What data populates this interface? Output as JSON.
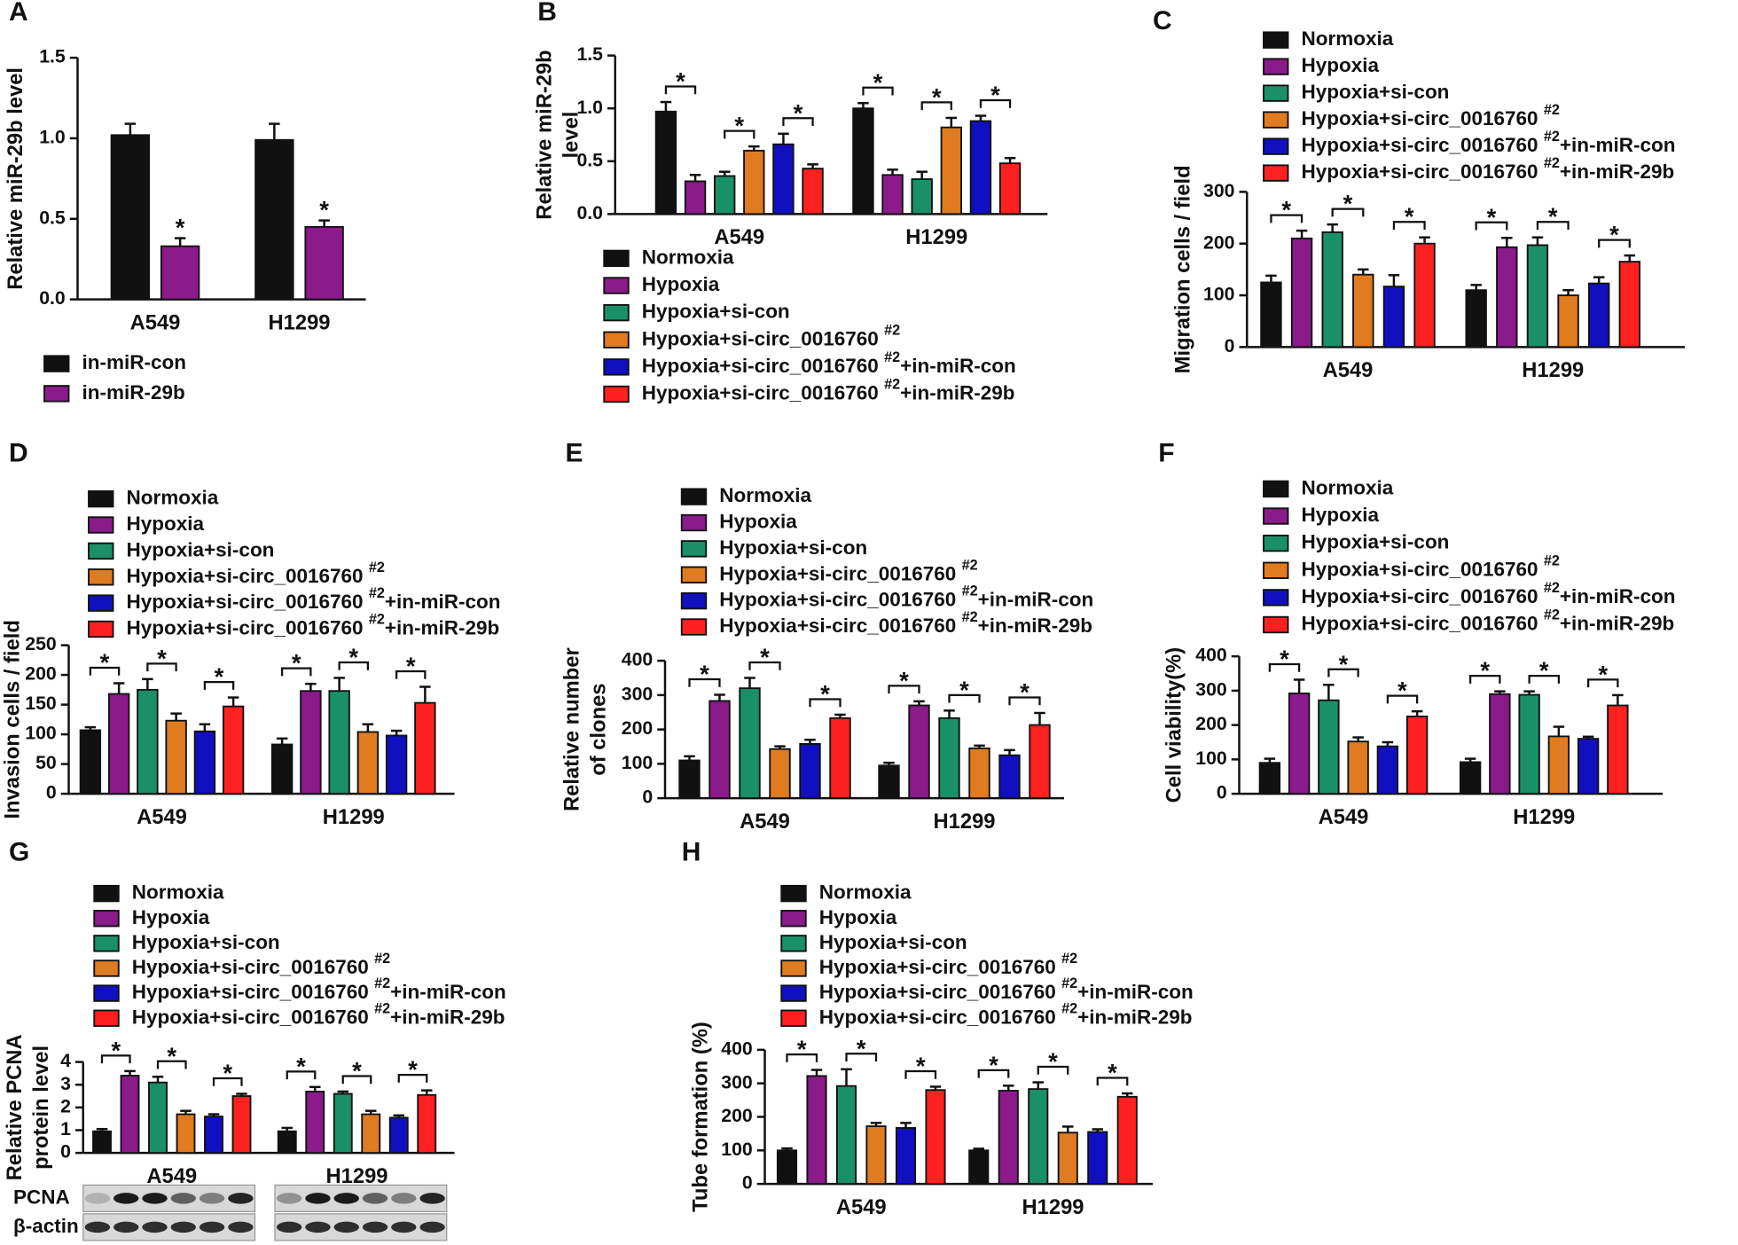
{
  "chart_data": [
    {
      "type": "bar",
      "label": "A",
      "ylabel": [
        "Relative miR-29b level"
      ],
      "categories": [
        "A549",
        "H1299"
      ],
      "series": [
        {
          "name": "in-miR-con",
          "color": "#111111",
          "values": [
            1.02,
            0.99
          ],
          "errors": [
            0.07,
            0.1
          ]
        },
        {
          "name": "in-miR-29b",
          "color": "#8b1a8b",
          "values": [
            0.33,
            0.45
          ],
          "errors": [
            0.05,
            0.04
          ]
        }
      ],
      "ylim": [
        0,
        1.5
      ],
      "yticks": [
        {
          "value": 0,
          "label": "0.0"
        },
        0.5,
        {
          "value": 1,
          "label": "1.0"
        },
        1.5
      ],
      "annotations": [
        {
          "text": "*",
          "category": 0,
          "series": 1
        },
        {
          "text": "*",
          "category": 1,
          "series": 1
        }
      ]
    },
    {
      "type": "bar",
      "label": "B",
      "ylabel": [
        "Relative miR-29b",
        "level"
      ],
      "categories": [
        "A549",
        "H1299"
      ],
      "series": [
        {
          "name": "Normoxia",
          "color": "#111111",
          "values": [
            0.97,
            1.0
          ],
          "errors": [
            0.09,
            0.05
          ]
        },
        {
          "name": "Hypoxia",
          "color": "#8b1a8b",
          "values": [
            0.31,
            0.37
          ],
          "errors": [
            0.06,
            0.05
          ]
        },
        {
          "name": "Hypoxia+si-con",
          "color": "#1a9068",
          "values": [
            0.36,
            0.33
          ],
          "errors": [
            0.04,
            0.07
          ]
        },
        {
          "name": "Hypoxia+si-circ_0016760 #2",
          "color": "#e07b20",
          "values": [
            0.6,
            0.82
          ],
          "errors": [
            0.04,
            0.09
          ]
        },
        {
          "name": "Hypoxia+si-circ_0016760 #2+in-miR-con",
          "color": "#1010c0",
          "values": [
            0.66,
            0.88
          ],
          "errors": [
            0.1,
            0.05
          ]
        },
        {
          "name": "Hypoxia+si-circ_0016760 #2+in-miR-29b",
          "color": "#ff2020",
          "values": [
            0.43,
            0.48
          ],
          "errors": [
            0.04,
            0.05
          ]
        }
      ],
      "ylim": [
        0,
        1.5
      ],
      "yticks": [
        {
          "value": 0,
          "label": "0.0"
        },
        0.5,
        {
          "value": 1,
          "label": "1.0"
        },
        1.5
      ],
      "annotations": [
        {
          "text": "*",
          "category": 0,
          "pair": [
            0,
            1
          ]
        },
        {
          "text": "*",
          "category": 0,
          "pair": [
            2,
            3
          ]
        },
        {
          "text": "*",
          "category": 0,
          "pair": [
            4,
            5
          ]
        },
        {
          "text": "*",
          "category": 1,
          "pair": [
            0,
            1
          ]
        },
        {
          "text": "*",
          "category": 1,
          "pair": [
            2,
            3
          ]
        },
        {
          "text": "*",
          "category": 1,
          "pair": [
            4,
            5
          ]
        }
      ]
    },
    {
      "type": "bar",
      "label": "C",
      "ylabel": [
        "Migration cells / field"
      ],
      "categories": [
        "A549",
        "H1299"
      ],
      "series": [
        {
          "name": "Normoxia",
          "color": "#111111",
          "values": [
            125,
            110
          ],
          "errors": [
            13,
            10
          ]
        },
        {
          "name": "Hypoxia",
          "color": "#8b1a8b",
          "values": [
            210,
            193
          ],
          "errors": [
            15,
            18
          ]
        },
        {
          "name": "Hypoxia+si-con",
          "color": "#1a9068",
          "values": [
            222,
            197
          ],
          "errors": [
            15,
            15
          ]
        },
        {
          "name": "Hypoxia+si-circ_0016760 #2",
          "color": "#e07b20",
          "values": [
            140,
            100
          ],
          "errors": [
            10,
            10
          ]
        },
        {
          "name": "Hypoxia+si-circ_0016760 #2+in-miR-con",
          "color": "#1010c0",
          "values": [
            117,
            123
          ],
          "errors": [
            22,
            12
          ]
        },
        {
          "name": "Hypoxia+si-circ_0016760 #2+in-miR-29b",
          "color": "#ff2020",
          "values": [
            200,
            165
          ],
          "errors": [
            12,
            12
          ]
        }
      ],
      "ylim": [
        0,
        300
      ],
      "yticks": [
        0,
        100,
        200,
        300
      ],
      "annotations": [
        {
          "text": "*",
          "category": 0,
          "pair": [
            0,
            1
          ]
        },
        {
          "text": "*",
          "category": 0,
          "pair": [
            2,
            3
          ]
        },
        {
          "text": "*",
          "category": 0,
          "pair": [
            4,
            5
          ]
        },
        {
          "text": "*",
          "category": 1,
          "pair": [
            0,
            1
          ]
        },
        {
          "text": "*",
          "category": 1,
          "pair": [
            2,
            3
          ]
        },
        {
          "text": "*",
          "category": 1,
          "pair": [
            4,
            5
          ]
        }
      ]
    },
    {
      "type": "bar",
      "label": "D",
      "ylabel": [
        "Invasion cells / field"
      ],
      "categories": [
        "A549",
        "H1299"
      ],
      "series": [
        {
          "name": "Normoxia",
          "color": "#111111",
          "values": [
            107,
            83
          ],
          "errors": [
            5,
            10
          ]
        },
        {
          "name": "Hypoxia",
          "color": "#8b1a8b",
          "values": [
            168,
            173
          ],
          "errors": [
            18,
            12
          ]
        },
        {
          "name": "Hypoxia+si-con",
          "color": "#1a9068",
          "values": [
            175,
            173
          ],
          "errors": [
            18,
            22
          ]
        },
        {
          "name": "Hypoxia+si-circ_0016760 #2",
          "color": "#e07b20",
          "values": [
            123,
            104
          ],
          "errors": [
            12,
            13
          ]
        },
        {
          "name": "Hypoxia+si-circ_0016760 #2+in-miR-con",
          "color": "#1010c0",
          "values": [
            105,
            98
          ],
          "errors": [
            12,
            8
          ]
        },
        {
          "name": "Hypoxia+si-circ_0016760 #2+in-miR-29b",
          "color": "#ff2020",
          "values": [
            147,
            153
          ],
          "errors": [
            15,
            27
          ]
        }
      ],
      "ylim": [
        0,
        250
      ],
      "yticks": [
        0,
        50,
        100,
        150,
        200,
        250
      ],
      "annotations": [
        {
          "text": "*",
          "category": 0,
          "pair": [
            0,
            1
          ]
        },
        {
          "text": "*",
          "category": 0,
          "pair": [
            2,
            3
          ]
        },
        {
          "text": "*",
          "category": 0,
          "pair": [
            4,
            5
          ]
        },
        {
          "text": "*",
          "category": 1,
          "pair": [
            0,
            1
          ]
        },
        {
          "text": "*",
          "category": 1,
          "pair": [
            2,
            3
          ]
        },
        {
          "text": "*",
          "category": 1,
          "pair": [
            4,
            5
          ]
        }
      ]
    },
    {
      "type": "bar",
      "label": "E",
      "ylabel": [
        "Relative number",
        "of clones"
      ],
      "categories": [
        "A549",
        "H1299"
      ],
      "series": [
        {
          "name": "Normoxia",
          "color": "#111111",
          "values": [
            110,
            95
          ],
          "errors": [
            12,
            8
          ]
        },
        {
          "name": "Hypoxia",
          "color": "#8b1a8b",
          "values": [
            283,
            270
          ],
          "errors": [
            18,
            12
          ]
        },
        {
          "name": "Hypoxia+si-con",
          "color": "#1a9068",
          "values": [
            320,
            233
          ],
          "errors": [
            30,
            22
          ]
        },
        {
          "name": "Hypoxia+si-circ_0016760 #2",
          "color": "#e07b20",
          "values": [
            143,
            145
          ],
          "errors": [
            8,
            8
          ]
        },
        {
          "name": "Hypoxia+si-circ_0016760 #2+in-miR-con",
          "color": "#1010c0",
          "values": [
            158,
            125
          ],
          "errors": [
            12,
            15
          ]
        },
        {
          "name": "Hypoxia+si-circ_0016760 #2+in-miR-29b",
          "color": "#ff2020",
          "values": [
            233,
            213
          ],
          "errors": [
            10,
            35
          ]
        }
      ],
      "ylim": [
        0,
        400
      ],
      "yticks": [
        0,
        100,
        200,
        300,
        400
      ],
      "annotations": [
        {
          "text": "*",
          "category": 0,
          "pair": [
            0,
            1
          ]
        },
        {
          "text": "*",
          "category": 0,
          "pair": [
            2,
            3
          ]
        },
        {
          "text": "*",
          "category": 0,
          "pair": [
            4,
            5
          ]
        },
        {
          "text": "*",
          "category": 1,
          "pair": [
            0,
            1
          ]
        },
        {
          "text": "*",
          "category": 1,
          "pair": [
            2,
            3
          ]
        },
        {
          "text": "*",
          "category": 1,
          "pair": [
            4,
            5
          ]
        }
      ]
    },
    {
      "type": "bar",
      "label": "F",
      "ylabel": [
        "Cell viability(%)"
      ],
      "categories": [
        "A549",
        "H1299"
      ],
      "series": [
        {
          "name": "Normoxia",
          "color": "#111111",
          "values": [
            90,
            92
          ],
          "errors": [
            12,
            10
          ]
        },
        {
          "name": "Hypoxia",
          "color": "#8b1a8b",
          "values": [
            292,
            290
          ],
          "errors": [
            40,
            8
          ]
        },
        {
          "name": "Hypoxia+si-con",
          "color": "#1a9068",
          "values": [
            272,
            288
          ],
          "errors": [
            45,
            10
          ]
        },
        {
          "name": "Hypoxia+si-circ_0016760 #2",
          "color": "#e07b20",
          "values": [
            152,
            167
          ],
          "errors": [
            12,
            28
          ]
        },
        {
          "name": "Hypoxia+si-circ_0016760 #2+in-miR-con",
          "color": "#1010c0",
          "values": [
            138,
            160
          ],
          "errors": [
            12,
            6
          ]
        },
        {
          "name": "Hypoxia+si-circ_0016760 #2+in-miR-29b",
          "color": "#ff2020",
          "values": [
            225,
            257
          ],
          "errors": [
            15,
            30
          ]
        }
      ],
      "ylim": [
        0,
        400
      ],
      "yticks": [
        0,
        100,
        200,
        300,
        400
      ],
      "annotations": [
        {
          "text": "*",
          "category": 0,
          "pair": [
            0,
            1
          ]
        },
        {
          "text": "*",
          "category": 0,
          "pair": [
            2,
            3
          ]
        },
        {
          "text": "*",
          "category": 0,
          "pair": [
            4,
            5
          ]
        },
        {
          "text": "*",
          "category": 1,
          "pair": [
            0,
            1
          ]
        },
        {
          "text": "*",
          "category": 1,
          "pair": [
            2,
            3
          ]
        },
        {
          "text": "*",
          "category": 1,
          "pair": [
            4,
            5
          ]
        }
      ]
    },
    {
      "type": "bar",
      "label": "G",
      "ylabel": [
        "Relative PCNA",
        "protein level"
      ],
      "categories": [
        "A549",
        "H1299"
      ],
      "series": [
        {
          "name": "Normoxia",
          "color": "#111111",
          "values": [
            0.95,
            0.95
          ],
          "errors": [
            0.1,
            0.15
          ]
        },
        {
          "name": "Hypoxia",
          "color": "#8b1a8b",
          "values": [
            3.4,
            2.7
          ],
          "errors": [
            0.2,
            0.2
          ]
        },
        {
          "name": "Hypoxia+si-con",
          "color": "#1a9068",
          "values": [
            3.1,
            2.6
          ],
          "errors": [
            0.25,
            0.1
          ]
        },
        {
          "name": "Hypoxia+si-circ_0016760 #2",
          "color": "#e07b20",
          "values": [
            1.7,
            1.7
          ],
          "errors": [
            0.15,
            0.15
          ]
        },
        {
          "name": "Hypoxia+si-circ_0016760 #2+in-miR-con",
          "color": "#1010c0",
          "values": [
            1.6,
            1.55
          ],
          "errors": [
            0.1,
            0.1
          ]
        },
        {
          "name": "Hypoxia+si-circ_0016760 #2+in-miR-29b",
          "color": "#ff2020",
          "values": [
            2.5,
            2.55
          ],
          "errors": [
            0.1,
            0.2
          ]
        }
      ],
      "ylim": [
        0,
        4
      ],
      "yticks": [
        0,
        1,
        2,
        3,
        4
      ],
      "annotations": [
        {
          "text": "*",
          "category": 0,
          "pair": [
            0,
            1
          ]
        },
        {
          "text": "*",
          "category": 0,
          "pair": [
            2,
            3
          ]
        },
        {
          "text": "*",
          "category": 0,
          "pair": [
            4,
            5
          ]
        },
        {
          "text": "*",
          "category": 1,
          "pair": [
            0,
            1
          ]
        },
        {
          "text": "*",
          "category": 1,
          "pair": [
            2,
            3
          ]
        },
        {
          "text": "*",
          "category": 1,
          "pair": [
            4,
            5
          ]
        }
      ],
      "blot": {
        "labels": [
          "PCNA",
          "β-actin"
        ]
      }
    },
    {
      "type": "bar",
      "label": "H",
      "ylabel": [
        "Tube formation (%)"
      ],
      "categories": [
        "A549",
        "H1299"
      ],
      "series": [
        {
          "name": "Normoxia",
          "color": "#111111",
          "values": [
            100,
            100
          ],
          "errors": [
            6,
            5
          ]
        },
        {
          "name": "Hypoxia",
          "color": "#8b1a8b",
          "values": [
            322,
            278
          ],
          "errors": [
            18,
            15
          ]
        },
        {
          "name": "Hypoxia+si-con",
          "color": "#1a9068",
          "values": [
            292,
            283
          ],
          "errors": [
            50,
            20
          ]
        },
        {
          "name": "Hypoxia+si-circ_0016760 #2",
          "color": "#e07b20",
          "values": [
            172,
            153
          ],
          "errors": [
            10,
            18
          ]
        },
        {
          "name": "Hypoxia+si-circ_0016760 #2+in-miR-con",
          "color": "#1010c0",
          "values": [
            167,
            155
          ],
          "errors": [
            15,
            8
          ]
        },
        {
          "name": "Hypoxia+si-circ_0016760 #2+in-miR-29b",
          "color": "#ff2020",
          "values": [
            280,
            260
          ],
          "errors": [
            10,
            10
          ]
        }
      ],
      "ylim": [
        0,
        400
      ],
      "yticks": [
        0,
        100,
        200,
        300,
        400
      ],
      "annotations": [
        {
          "text": "*",
          "category": 0,
          "pair": [
            0,
            1
          ]
        },
        {
          "text": "*",
          "category": 0,
          "pair": [
            2,
            3
          ]
        },
        {
          "text": "*",
          "category": 0,
          "pair": [
            4,
            5
          ]
        },
        {
          "text": "*",
          "category": 1,
          "pair": [
            0,
            1
          ]
        },
        {
          "text": "*",
          "category": 1,
          "pair": [
            2,
            3
          ]
        },
        {
          "text": "*",
          "category": 1,
          "pair": [
            4,
            5
          ]
        }
      ]
    }
  ]
}
